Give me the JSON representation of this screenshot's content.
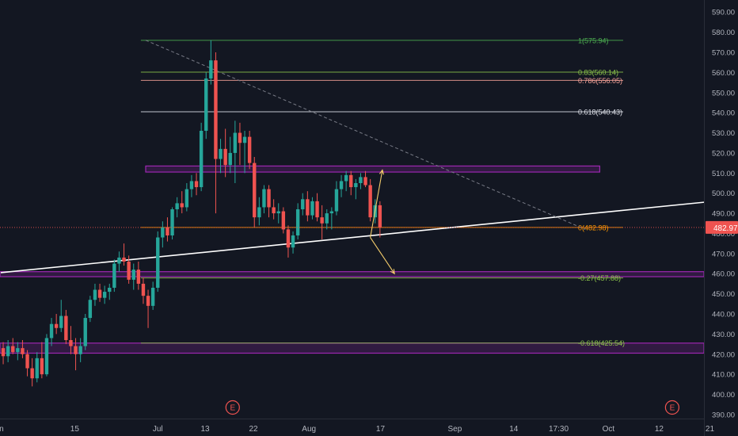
{
  "chart_data": {
    "type": "candlestick",
    "title": "",
    "symbol_last_price": "482.97",
    "y_axis": {
      "range": [
        388,
        596
      ],
      "ticks": [
        "390.00",
        "400.00",
        "410.00",
        "420.00",
        "430.00",
        "440.00",
        "450.00",
        "460.00",
        "470.00",
        "480.00",
        "490.00",
        "500.00",
        "510.00",
        "520.00",
        "530.00",
        "540.00",
        "550.00",
        "560.00",
        "570.00",
        "580.00",
        "590.00"
      ]
    },
    "x_axis": {
      "ticks": [
        {
          "label": "un",
          "bar": -0.3
        },
        {
          "label": "15",
          "bar": 15.3
        },
        {
          "label": "Jul",
          "bar": 32.5
        },
        {
          "label": "13",
          "bar": 42.3
        },
        {
          "label": "22",
          "bar": 52.3
        },
        {
          "label": "Aug",
          "bar": 63.8
        },
        {
          "label": "17",
          "bar": 78.6
        },
        {
          "label": "Sep",
          "bar": 94.0
        },
        {
          "label": "14",
          "bar": 106.2
        },
        {
          "label": "17:30",
          "bar": 115.5
        },
        {
          "label": "Oct",
          "bar": 125.8
        },
        {
          "label": "12",
          "bar": 136.3
        },
        {
          "label": "21",
          "bar": 146.8
        }
      ]
    },
    "earnings_markers": [
      {
        "label": "E",
        "bar": 48
      },
      {
        "label": "E",
        "bar": 139
      }
    ],
    "candles": [
      {
        "o": 423,
        "h": 426,
        "l": 415,
        "c": 419
      },
      {
        "o": 419,
        "h": 427,
        "l": 416,
        "c": 424
      },
      {
        "o": 424,
        "h": 428,
        "l": 420,
        "c": 421
      },
      {
        "o": 421,
        "h": 426,
        "l": 417,
        "c": 423
      },
      {
        "o": 423,
        "h": 427,
        "l": 418,
        "c": 420
      },
      {
        "o": 420,
        "h": 422,
        "l": 409,
        "c": 413
      },
      {
        "o": 413,
        "h": 418,
        "l": 404,
        "c": 408
      },
      {
        "o": 408,
        "h": 421,
        "l": 406,
        "c": 418
      },
      {
        "o": 418,
        "h": 426,
        "l": 408,
        "c": 410
      },
      {
        "o": 410,
        "h": 430,
        "l": 409,
        "c": 428
      },
      {
        "o": 428,
        "h": 438,
        "l": 424,
        "c": 435
      },
      {
        "o": 435,
        "h": 440,
        "l": 430,
        "c": 433
      },
      {
        "o": 433,
        "h": 447,
        "l": 431,
        "c": 439
      },
      {
        "o": 439,
        "h": 442,
        "l": 425,
        "c": 427
      },
      {
        "o": 427,
        "h": 434,
        "l": 420,
        "c": 424
      },
      {
        "o": 424,
        "h": 428,
        "l": 412,
        "c": 420
      },
      {
        "o": 420,
        "h": 428,
        "l": 416,
        "c": 424
      },
      {
        "o": 424,
        "h": 440,
        "l": 422,
        "c": 438
      },
      {
        "o": 438,
        "h": 449,
        "l": 436,
        "c": 447
      },
      {
        "o": 447,
        "h": 455,
        "l": 444,
        "c": 452
      },
      {
        "o": 452,
        "h": 455,
        "l": 446,
        "c": 448
      },
      {
        "o": 448,
        "h": 454,
        "l": 445,
        "c": 451
      },
      {
        "o": 451,
        "h": 455,
        "l": 447,
        "c": 453
      },
      {
        "o": 453,
        "h": 467,
        "l": 451,
        "c": 465
      },
      {
        "o": 465,
        "h": 471,
        "l": 461,
        "c": 468
      },
      {
        "o": 468,
        "h": 475,
        "l": 464,
        "c": 466
      },
      {
        "o": 466,
        "h": 469,
        "l": 455,
        "c": 457
      },
      {
        "o": 457,
        "h": 465,
        "l": 452,
        "c": 462
      },
      {
        "o": 462,
        "h": 466,
        "l": 452,
        "c": 455
      },
      {
        "o": 455,
        "h": 458,
        "l": 445,
        "c": 449
      },
      {
        "o": 449,
        "h": 452,
        "l": 433,
        "c": 444
      },
      {
        "o": 444,
        "h": 456,
        "l": 442,
        "c": 453
      },
      {
        "o": 453,
        "h": 481,
        "l": 451,
        "c": 478
      },
      {
        "o": 478,
        "h": 486,
        "l": 473,
        "c": 483
      },
      {
        "o": 483,
        "h": 488,
        "l": 476,
        "c": 479
      },
      {
        "o": 479,
        "h": 493,
        "l": 477,
        "c": 492
      },
      {
        "o": 492,
        "h": 498,
        "l": 488,
        "c": 495
      },
      {
        "o": 495,
        "h": 501,
        "l": 490,
        "c": 493
      },
      {
        "o": 493,
        "h": 505,
        "l": 491,
        "c": 502
      },
      {
        "o": 502,
        "h": 509,
        "l": 498,
        "c": 506
      },
      {
        "o": 506,
        "h": 510,
        "l": 499,
        "c": 503
      },
      {
        "o": 503,
        "h": 535,
        "l": 501,
        "c": 531
      },
      {
        "o": 531,
        "h": 560,
        "l": 527,
        "c": 557
      },
      {
        "o": 557,
        "h": 576,
        "l": 554,
        "c": 566
      },
      {
        "o": 566,
        "h": 570,
        "l": 490,
        "c": 517
      },
      {
        "o": 517,
        "h": 527,
        "l": 510,
        "c": 522
      },
      {
        "o": 522,
        "h": 532,
        "l": 508,
        "c": 514
      },
      {
        "o": 514,
        "h": 528,
        "l": 510,
        "c": 520
      },
      {
        "o": 520,
        "h": 536,
        "l": 505,
        "c": 530
      },
      {
        "o": 530,
        "h": 535,
        "l": 514,
        "c": 525
      },
      {
        "o": 525,
        "h": 531,
        "l": 510,
        "c": 528
      },
      {
        "o": 528,
        "h": 531,
        "l": 512,
        "c": 515
      },
      {
        "o": 515,
        "h": 518,
        "l": 483,
        "c": 488
      },
      {
        "o": 488,
        "h": 498,
        "l": 484,
        "c": 493
      },
      {
        "o": 493,
        "h": 504,
        "l": 490,
        "c": 502
      },
      {
        "o": 502,
        "h": 504,
        "l": 488,
        "c": 493
      },
      {
        "o": 493,
        "h": 497,
        "l": 487,
        "c": 490
      },
      {
        "o": 490,
        "h": 495,
        "l": 485,
        "c": 491
      },
      {
        "o": 491,
        "h": 493,
        "l": 480,
        "c": 482
      },
      {
        "o": 482,
        "h": 484,
        "l": 468,
        "c": 473
      },
      {
        "o": 473,
        "h": 481,
        "l": 470,
        "c": 479
      },
      {
        "o": 479,
        "h": 495,
        "l": 477,
        "c": 492
      },
      {
        "o": 492,
        "h": 500,
        "l": 489,
        "c": 497
      },
      {
        "o": 497,
        "h": 501,
        "l": 486,
        "c": 489
      },
      {
        "o": 489,
        "h": 498,
        "l": 487,
        "c": 496
      },
      {
        "o": 496,
        "h": 500,
        "l": 486,
        "c": 488
      },
      {
        "o": 488,
        "h": 494,
        "l": 477,
        "c": 485
      },
      {
        "o": 485,
        "h": 492,
        "l": 482,
        "c": 490
      },
      {
        "o": 490,
        "h": 493,
        "l": 482,
        "c": 491
      },
      {
        "o": 491,
        "h": 506,
        "l": 489,
        "c": 502
      },
      {
        "o": 502,
        "h": 509,
        "l": 498,
        "c": 506
      },
      {
        "o": 506,
        "h": 511,
        "l": 501,
        "c": 509
      },
      {
        "o": 509,
        "h": 511,
        "l": 499,
        "c": 503
      },
      {
        "o": 503,
        "h": 507,
        "l": 497,
        "c": 505
      },
      {
        "o": 505,
        "h": 510,
        "l": 502,
        "c": 508
      },
      {
        "o": 508,
        "h": 511,
        "l": 503,
        "c": 504
      },
      {
        "o": 504,
        "h": 507,
        "l": 486,
        "c": 488
      },
      {
        "o": 488,
        "h": 497,
        "l": 485,
        "c": 494
      },
      {
        "o": 494,
        "h": 496,
        "l": 478,
        "c": 483
      }
    ],
    "fib_levels": [
      {
        "label": "1(575.94)",
        "value": 575.94,
        "color": "#4caf50"
      },
      {
        "label": "0.83(560.14)",
        "value": 560.14,
        "color": "#8bc34a"
      },
      {
        "label": "0.786(556.05)",
        "value": 556.05,
        "color": "#f7a399"
      },
      {
        "label": "0.618(540.43)",
        "value": 540.43,
        "color": "#e0e3eb"
      },
      {
        "label": "0(482.98)",
        "value": 482.98,
        "color": "#ff9800"
      },
      {
        "label": "-0.27(457.88)",
        "value": 457.88,
        "color": "#8bc34a"
      },
      {
        "label": "-0.618(425.54)",
        "value": 425.54,
        "color": "#8bc34a"
      }
    ],
    "zones": [
      {
        "low": 510.5,
        "high": 513.5,
        "bar_start": 30,
        "bar_end": 124
      },
      {
        "low": 458.5,
        "high": 461,
        "bar_start": -1,
        "bar_end": 148
      },
      {
        "low": 420.5,
        "high": 425.5,
        "bar_start": -1,
        "bar_end": 148
      }
    ],
    "trendline": {
      "p1": {
        "bar": 0,
        "value": 460.5
      },
      "p2": {
        "bar": 148,
        "value": 495.5
      }
    },
    "dashed_trendline": {
      "p1": {
        "bar": 30,
        "value": 576
      },
      "p2": {
        "bar": 121,
        "value": 482
      }
    },
    "arrows": [
      {
        "from": {
          "bar": 76.5,
          "value": 478
        },
        "to": {
          "bar": 79,
          "value": 511.5
        }
      },
      {
        "from": {
          "bar": 76.5,
          "value": 478
        },
        "to": {
          "bar": 81.5,
          "value": 460
        }
      }
    ]
  },
  "colors": {
    "background": "#131722",
    "up": "#26a69a",
    "down": "#ef5350",
    "axis_text": "#b2b5be",
    "grid": "#1c2130",
    "zone_border": "#9c27b0",
    "zone_fill": "rgba(156,39,176,0.22)",
    "price_line": "#ef5350",
    "price_badge": "#ef5350",
    "arrow": "#f3cc6b",
    "trendline": "#ffffff",
    "dashed": "#787b86",
    "earnings": "#ef5350"
  }
}
